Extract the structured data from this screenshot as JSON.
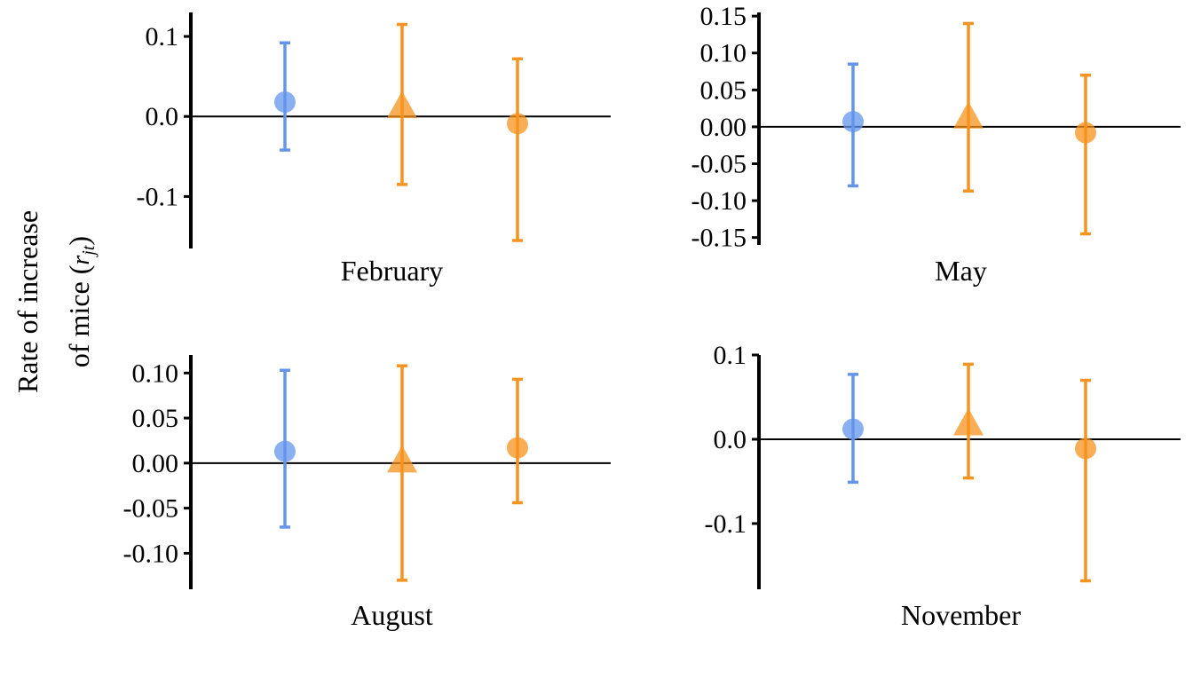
{
  "chart_data": {
    "type": "scatter",
    "ylabel_line1": "Rate of increase",
    "ylabel_line2_prefix": "of mice (",
    "ylabel_line2_var": "r",
    "ylabel_line2_sub": "jt",
    "ylabel_line2_suffix": ")",
    "colors": {
      "blue": "#6495ED",
      "orange": "#F7931E"
    },
    "panels": [
      {
        "title": "February",
        "ylim": [
          -0.165,
          0.13
        ],
        "yticks": [
          0.1,
          0.0,
          -0.1
        ],
        "ytick_labels": [
          "0.1",
          "0.0",
          "-0.1"
        ],
        "hline": 0,
        "points": [
          {
            "marker": "circle",
            "color": "blue",
            "y": 0.018,
            "lower": -0.042,
            "upper": 0.092
          },
          {
            "marker": "triangle",
            "color": "orange",
            "y": 0.013,
            "lower": -0.085,
            "upper": 0.115
          },
          {
            "marker": "circle",
            "color": "orange",
            "y": -0.009,
            "lower": -0.155,
            "upper": 0.072
          }
        ]
      },
      {
        "title": "May",
        "ylim": [
          -0.16,
          0.155
        ],
        "yticks": [
          0.15,
          0.1,
          0.05,
          0.0,
          -0.05,
          -0.1,
          -0.15
        ],
        "ytick_labels": [
          "0.15",
          "0.10",
          "0.05",
          "0.00",
          "-0.05",
          "-0.10",
          "-0.15"
        ],
        "hline": 0,
        "points": [
          {
            "marker": "circle",
            "color": "blue",
            "y": 0.007,
            "lower": -0.08,
            "upper": 0.085
          },
          {
            "marker": "triangle",
            "color": "orange",
            "y": 0.014,
            "lower": -0.087,
            "upper": 0.14
          },
          {
            "marker": "circle",
            "color": "orange",
            "y": -0.008,
            "lower": -0.145,
            "upper": 0.07
          }
        ]
      },
      {
        "title": "August",
        "ylim": [
          -0.14,
          0.12
        ],
        "yticks": [
          0.1,
          0.05,
          0.0,
          -0.05,
          -0.1
        ],
        "ytick_labels": [
          "0.10",
          "0.05",
          "0.00",
          "-0.05",
          "-0.10"
        ],
        "hline": 0,
        "points": [
          {
            "marker": "circle",
            "color": "blue",
            "y": 0.013,
            "lower": -0.071,
            "upper": 0.103
          },
          {
            "marker": "triangle",
            "color": "orange",
            "y": 0.003,
            "lower": -0.13,
            "upper": 0.108
          },
          {
            "marker": "circle",
            "color": "orange",
            "y": 0.017,
            "lower": -0.044,
            "upper": 0.093
          }
        ]
      },
      {
        "title": "November",
        "ylim": [
          -0.178,
          0.1
        ],
        "yticks": [
          0.1,
          0.0,
          -0.1
        ],
        "ytick_labels": [
          "0.1",
          "0.0",
          "-0.1"
        ],
        "hline": 0,
        "points": [
          {
            "marker": "circle",
            "color": "blue",
            "y": 0.012,
            "lower": -0.051,
            "upper": 0.077
          },
          {
            "marker": "triangle",
            "color": "orange",
            "y": 0.019,
            "lower": -0.046,
            "upper": 0.089
          },
          {
            "marker": "circle",
            "color": "orange",
            "y": -0.011,
            "lower": -0.168,
            "upper": 0.07
          }
        ]
      }
    ]
  }
}
